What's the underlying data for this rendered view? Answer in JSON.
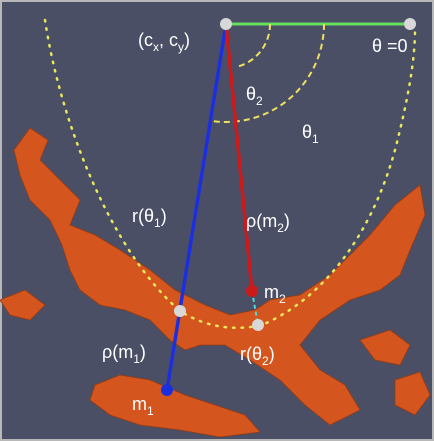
{
  "labels": [
    {
      "parts": [
        "(c",
        "x",
        ", c",
        "y",
        ")"
      ]
    },
    {
      "parts": [
        "θ =0"
      ]
    },
    {
      "parts": [
        "θ",
        "2"
      ]
    },
    {
      "parts": [
        "θ",
        "1"
      ]
    },
    {
      "parts": [
        "r(θ",
        "1",
        ")"
      ]
    },
    {
      "parts": [
        "ρ(m",
        "2",
        ")"
      ]
    },
    {
      "parts": [
        "m",
        "2"
      ]
    },
    {
      "parts": [
        "ρ(m",
        "1",
        ")"
      ]
    },
    {
      "parts": [
        "r(θ",
        "2",
        ")"
      ]
    },
    {
      "parts": [
        "m",
        "1"
      ]
    }
  ]
}
